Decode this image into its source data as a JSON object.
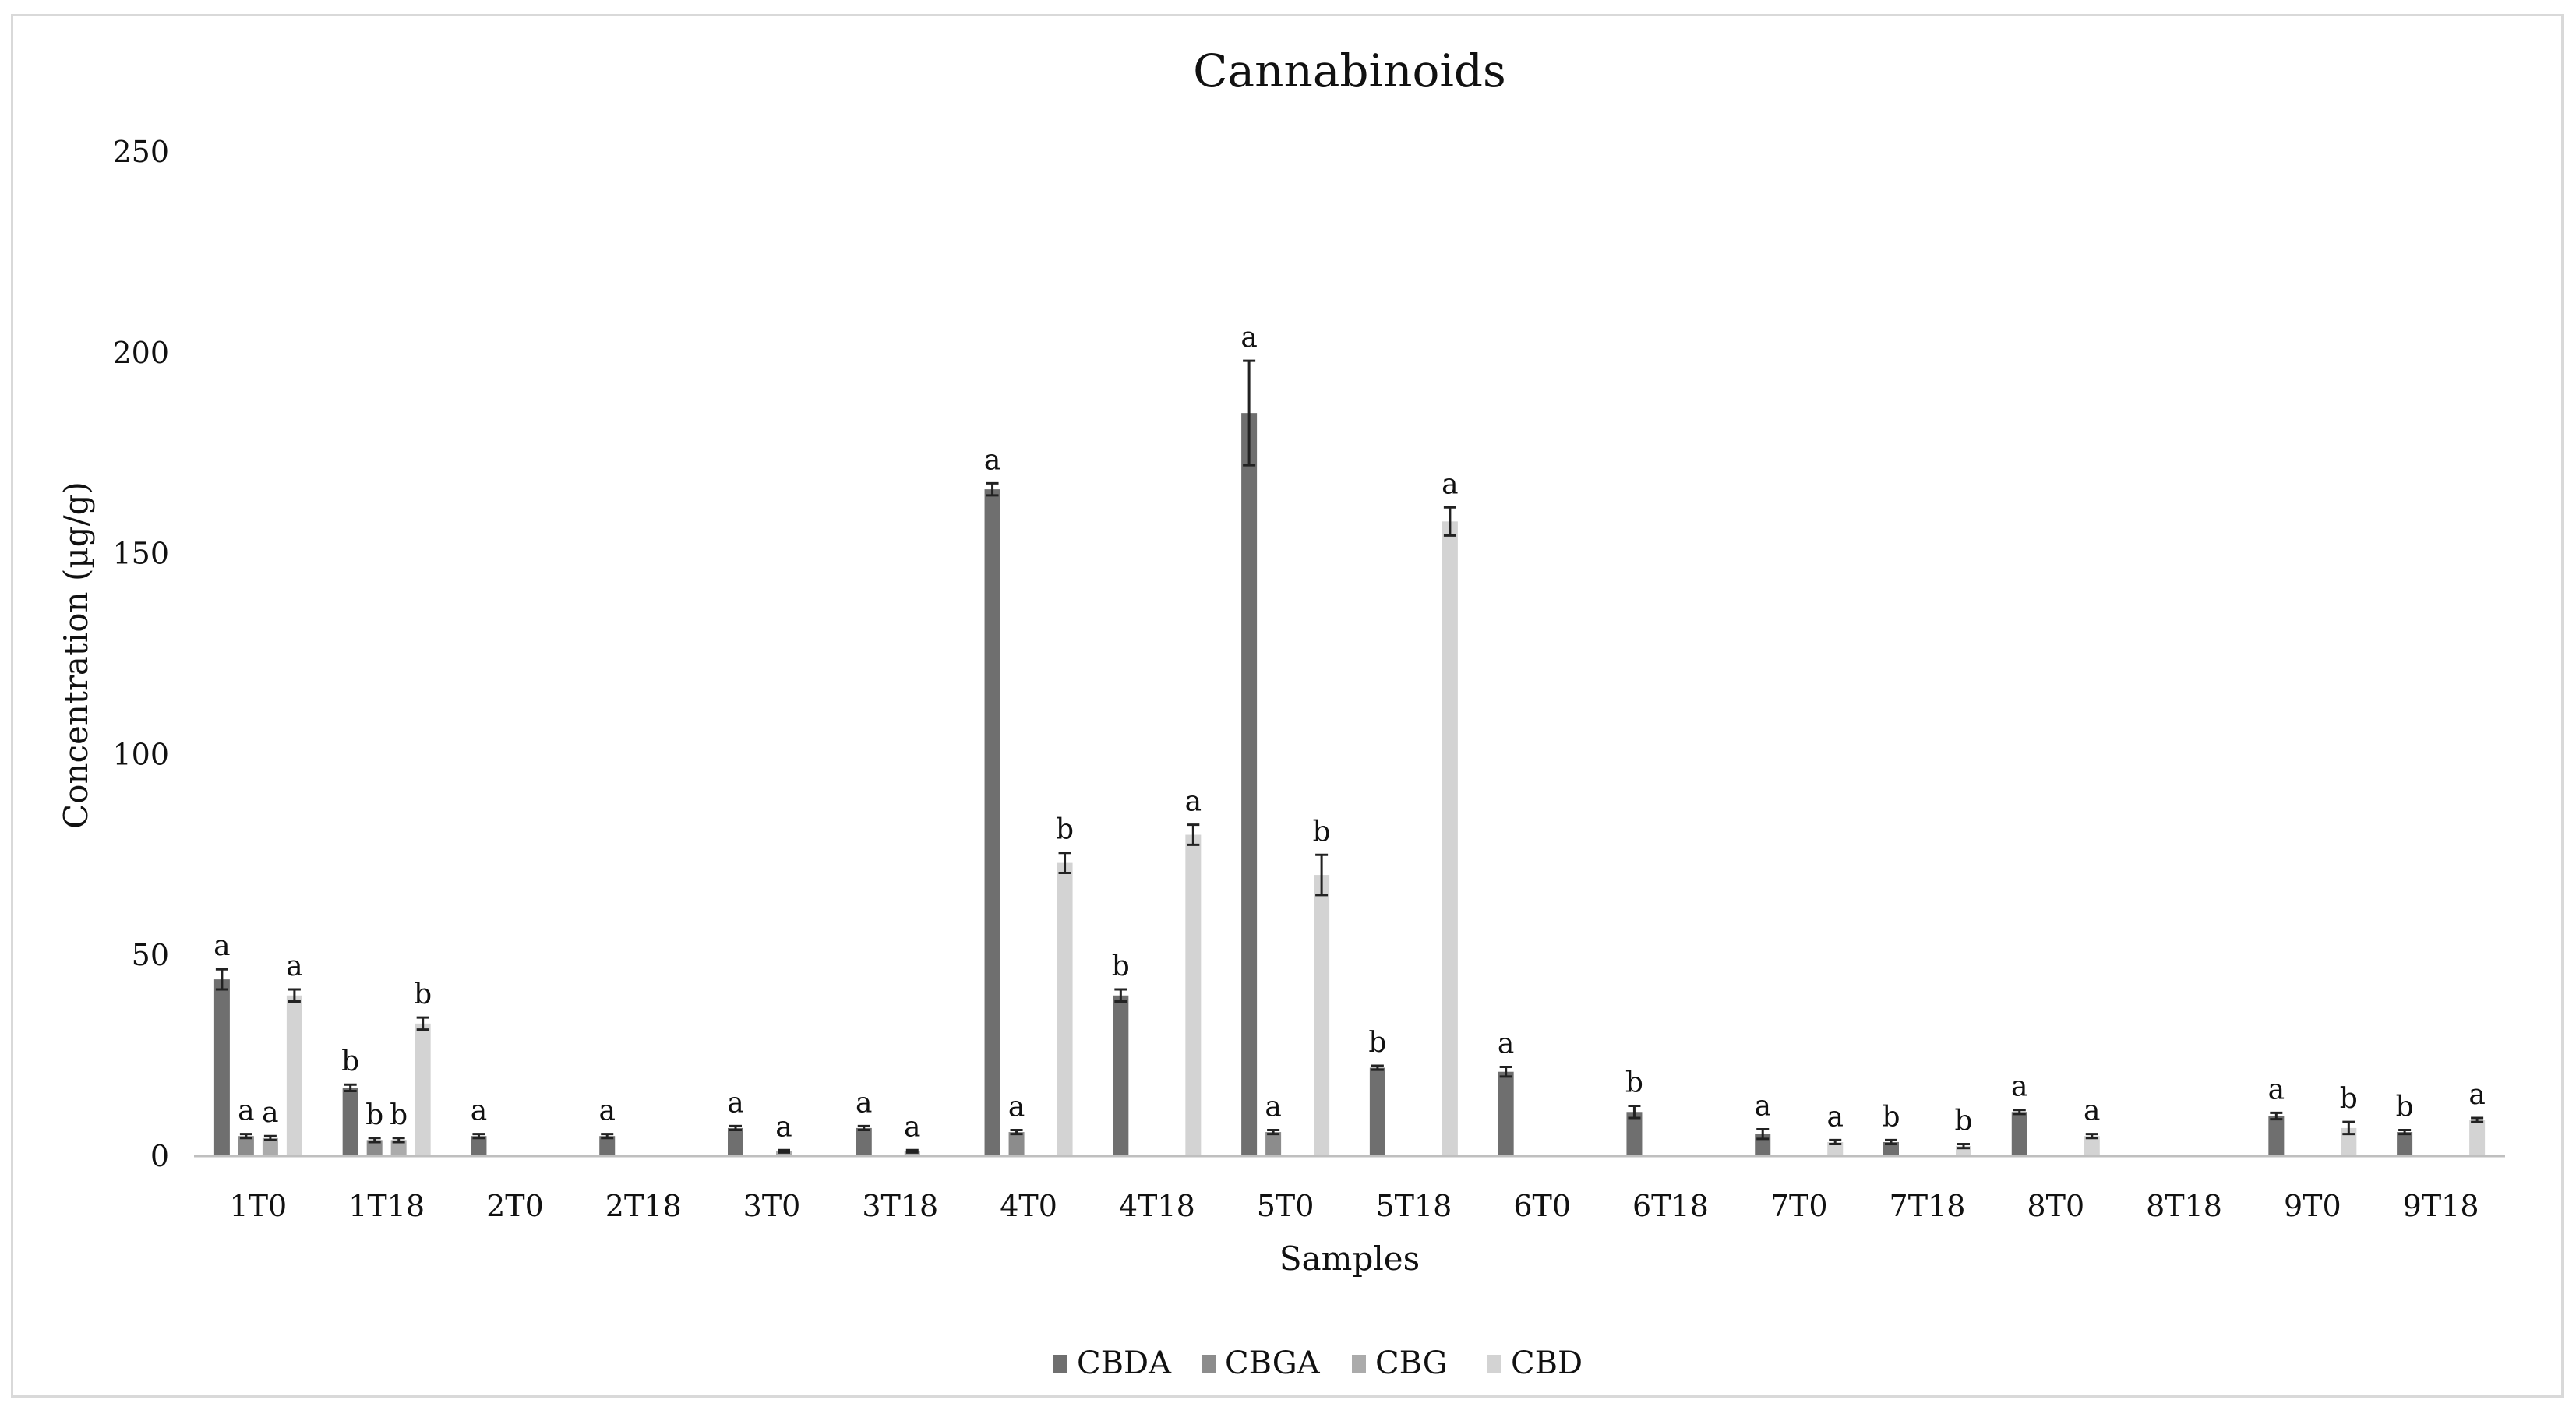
{
  "chart_data": {
    "type": "bar",
    "title": "Cannabinoids",
    "xlabel": "Samples",
    "ylabel": "Concentration (µg/g)",
    "ylim": [
      0,
      250
    ],
    "yticks": [
      0,
      50,
      100,
      150,
      200,
      250
    ],
    "grid": false,
    "legend_position": "bottom",
    "categories": [
      "1T0",
      "1T18",
      "2T0",
      "2T18",
      "3T0",
      "3T18",
      "4T0",
      "4T18",
      "5T0",
      "5T18",
      "6T0",
      "6T18",
      "7T0",
      "7T18",
      "8T0",
      "8T18",
      "9T0",
      "9T18"
    ],
    "series": [
      {
        "name": "CBDA",
        "color": "#6f6f6f",
        "values": [
          44,
          17,
          5,
          5,
          7,
          7,
          166,
          40,
          185,
          22,
          21,
          11,
          5.5,
          3.5,
          11,
          null,
          10,
          6
        ],
        "errors": [
          2.5,
          0.8,
          0.5,
          0.5,
          0.5,
          0.5,
          1.5,
          1.5,
          13,
          0.5,
          1.2,
          1.5,
          1.2,
          0.5,
          0.5,
          null,
          0.8,
          0.5
        ],
        "labels": [
          "a",
          "b",
          "a",
          "a",
          "a",
          "a",
          "a",
          "b",
          "a",
          "b",
          "a",
          "b",
          "a",
          "b",
          "a",
          "",
          "a",
          "b"
        ]
      },
      {
        "name": "CBGA",
        "color": "#8c8c8c",
        "values": [
          5,
          4,
          null,
          null,
          null,
          null,
          6,
          null,
          6,
          null,
          null,
          null,
          null,
          null,
          null,
          null,
          null,
          null
        ],
        "errors": [
          0.5,
          0.5,
          null,
          null,
          null,
          null,
          0.5,
          null,
          0.5,
          null,
          null,
          null,
          null,
          null,
          null,
          null,
          null,
          null
        ],
        "labels": [
          "a",
          "b",
          "",
          "",
          "",
          "",
          "a",
          "",
          "a",
          "",
          "",
          "",
          "",
          "",
          "",
          "",
          "",
          ""
        ]
      },
      {
        "name": "CBG",
        "color": "#ababab",
        "values": [
          4.5,
          4,
          null,
          null,
          1.2,
          1.2,
          null,
          null,
          null,
          null,
          null,
          null,
          null,
          null,
          null,
          null,
          null,
          null
        ],
        "errors": [
          0.5,
          0.5,
          null,
          null,
          0.3,
          0.3,
          null,
          null,
          null,
          null,
          null,
          null,
          null,
          null,
          null,
          null,
          null,
          null
        ],
        "labels": [
          "a",
          "b",
          "",
          "",
          "a",
          "a",
          "",
          "",
          "",
          "",
          "",
          "",
          "",
          "",
          "",
          "",
          "",
          ""
        ]
      },
      {
        "name": "CBD",
        "color": "#d3d3d3",
        "values": [
          40,
          33,
          null,
          null,
          null,
          null,
          73,
          80,
          70,
          158,
          null,
          null,
          3.5,
          2.5,
          5,
          null,
          7,
          9
        ],
        "errors": [
          1.5,
          1.5,
          null,
          null,
          null,
          null,
          2.5,
          2.5,
          5,
          3.5,
          null,
          null,
          0.5,
          0.5,
          0.5,
          null,
          1.5,
          0.5
        ],
        "labels": [
          "a",
          "b",
          "",
          "",
          "",
          "",
          "b",
          "a",
          "b",
          "a",
          "",
          "",
          "a",
          "b",
          "a",
          "",
          "b",
          "a"
        ]
      }
    ]
  }
}
